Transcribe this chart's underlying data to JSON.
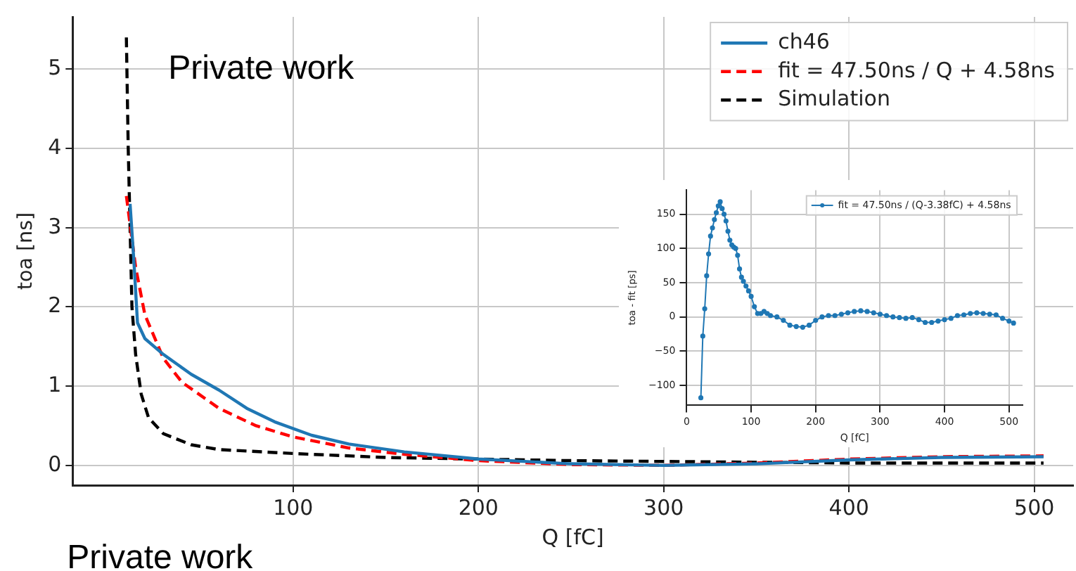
{
  "chart_data": [
    {
      "type": "line",
      "xlabel": "Q [fC]",
      "ylabel": "toa [ns]",
      "xlim": [
        -19,
        521
      ],
      "ylim": [
        -0.25,
        5.66
      ],
      "xticks": [
        100,
        200,
        300,
        400,
        500
      ],
      "yticks": [
        0,
        1,
        2,
        3,
        4,
        5
      ],
      "grid": true,
      "legend": "top right",
      "annotations": [
        "Private work",
        "Private work"
      ],
      "series": [
        {
          "name": "ch46",
          "color": "#1f77b4",
          "line_style": "solid",
          "x": [
            12,
            14,
            16,
            20,
            30,
            45,
            60,
            75,
            90,
            110,
            130,
            160,
            200,
            250,
            300,
            350,
            400,
            450,
            505
          ],
          "values": [
            3.3,
            2.6,
            1.8,
            1.6,
            1.4,
            1.15,
            0.95,
            0.72,
            0.55,
            0.38,
            0.27,
            0.17,
            0.08,
            0.02,
            0.0,
            0.02,
            0.07,
            0.1,
            0.11
          ]
        },
        {
          "name": "fit = 47.50ns / Q + 4.58ns",
          "color": "#ff0000",
          "line_style": "dashed",
          "x": [
            10,
            15,
            20,
            30,
            40,
            60,
            80,
            100,
            130,
            160,
            200,
            250,
            300,
            350,
            400,
            450,
            505
          ],
          "values": [
            3.4,
            2.5,
            1.9,
            1.35,
            1.05,
            0.72,
            0.5,
            0.36,
            0.22,
            0.14,
            0.06,
            0.01,
            0.0,
            0.03,
            0.08,
            0.11,
            0.12
          ]
        },
        {
          "name": "Simulation",
          "color": "#000000",
          "line_style": "dashed",
          "x": [
            10,
            11,
            12,
            13,
            15,
            18,
            22,
            30,
            45,
            60,
            100,
            150,
            200,
            250,
            300,
            400,
            505
          ],
          "values": [
            5.4,
            4.0,
            3.0,
            2.0,
            1.4,
            0.9,
            0.6,
            0.4,
            0.26,
            0.2,
            0.15,
            0.1,
            0.08,
            0.06,
            0.05,
            0.03,
            0.03
          ]
        }
      ]
    },
    {
      "type": "line",
      "xlabel": "Q [fC]",
      "ylabel": "toa - fit [ps]",
      "xlim": [
        0,
        521
      ],
      "ylim": [
        -129,
        185
      ],
      "xticks": [
        0,
        100,
        200,
        300,
        400,
        500
      ],
      "yticks": [
        -100,
        -50,
        0,
        50,
        100,
        150
      ],
      "grid": true,
      "legend": "top right",
      "marker": "circle",
      "series": [
        {
          "name": "fit = 47.50ns / (Q-3.38fC) + 4.58ns",
          "color": "#1f77b4",
          "line_style": "solid",
          "x": [
            22,
            25,
            28,
            31,
            34,
            37,
            40,
            43,
            46,
            49,
            52,
            55,
            58,
            61,
            64,
            67,
            70,
            73,
            76,
            79,
            82,
            85,
            88,
            92,
            96,
            100,
            105,
            110,
            115,
            120,
            125,
            130,
            140,
            150,
            160,
            170,
            180,
            190,
            200,
            210,
            220,
            230,
            240,
            250,
            260,
            270,
            280,
            290,
            300,
            310,
            320,
            330,
            340,
            350,
            360,
            370,
            380,
            390,
            400,
            410,
            420,
            430,
            440,
            450,
            460,
            470,
            480,
            490,
            500,
            507
          ],
          "values": [
            -118,
            -28,
            12,
            60,
            92,
            118,
            130,
            142,
            152,
            162,
            168,
            158,
            150,
            140,
            125,
            112,
            105,
            102,
            100,
            90,
            70,
            58,
            52,
            45,
            38,
            30,
            15,
            5,
            5,
            8,
            5,
            2,
            0,
            -5,
            -12,
            -14,
            -15,
            -12,
            -5,
            0,
            2,
            2,
            4,
            6,
            8,
            9,
            8,
            6,
            4,
            2,
            0,
            -1,
            -2,
            -1,
            -4,
            -8,
            -8,
            -6,
            -4,
            -2,
            2,
            3,
            5,
            6,
            5,
            4,
            3,
            -2,
            -6,
            -9
          ]
        }
      ]
    }
  ]
}
